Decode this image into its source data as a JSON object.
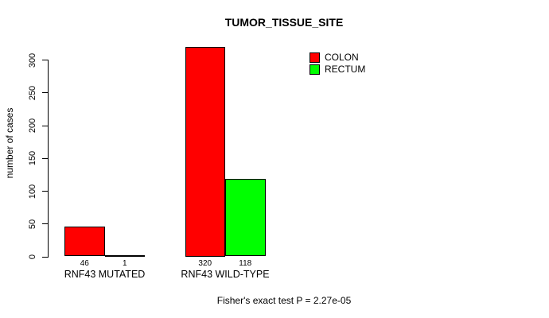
{
  "title": "TUMOR_TISSUE_SITE",
  "footnote": "Fisher's exact test P = 2.27e-05",
  "colors": {
    "colon": "#ff0000",
    "rectum": "#00ff00",
    "axis": "#000000",
    "background": "#ffffff",
    "text": "#000000"
  },
  "chart_data": {
    "type": "bar",
    "title": "TUMOR_TISSUE_SITE",
    "xlabel": "",
    "ylabel": "number of cases",
    "categories": [
      "RNF43 MUTATED",
      "RNF43 WILD-TYPE"
    ],
    "series": [
      {
        "name": "COLON",
        "color": "#ff0000",
        "values": [
          46,
          320
        ]
      },
      {
        "name": "RECTUM",
        "color": "#00ff00",
        "values": [
          1,
          118
        ]
      }
    ],
    "bar_value_labels": [
      [
        "46",
        "1"
      ],
      [
        "320",
        "118"
      ]
    ],
    "yticks": [
      0,
      50,
      100,
      150,
      200,
      250,
      300
    ],
    "ylim": [
      0,
      320
    ],
    "grid": false,
    "legend_position": "top-right",
    "annotation": "Fisher's exact test P = 2.27e-05"
  }
}
